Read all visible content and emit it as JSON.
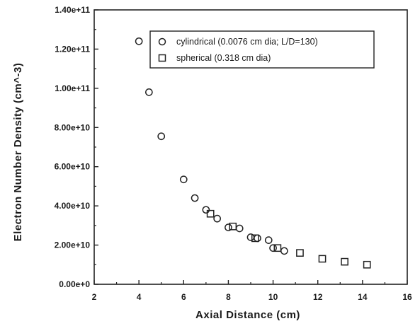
{
  "chart_data": {
    "type": "scatter",
    "xlabel": "Axial Distance (cm)",
    "ylabel": "Electron Number Density (cm^-3)",
    "xlim": [
      2,
      16
    ],
    "ylim": [
      0,
      140000000000
    ],
    "x_ticks": [
      2,
      4,
      6,
      8,
      10,
      12,
      14,
      16
    ],
    "x_tick_labels": [
      "2",
      "4",
      "6",
      "8",
      "10",
      "12",
      "14",
      "16"
    ],
    "y_ticks": [
      0,
      20000000000,
      40000000000,
      60000000000,
      80000000000,
      100000000000,
      120000000000,
      140000000000
    ],
    "y_tick_labels": [
      "0.00e+0",
      "2.00e+10",
      "4.00e+10",
      "6.00e+10",
      "8.00e+10",
      "1.00e+11",
      "1.20e+11",
      "1.40e+11"
    ],
    "grid": false,
    "legend_position": "top-right",
    "series": [
      {
        "name": "cylindrical (0.0076 cm dia; L/D=130)",
        "marker": "circle",
        "x": [
          4.0,
          4.45,
          5.0,
          6.0,
          6.5,
          7.0,
          7.5,
          8.0,
          8.5,
          9.0,
          9.3,
          9.8,
          10.0,
          10.5
        ],
        "y": [
          124000000000,
          98000000000,
          75500000000,
          53500000000,
          44000000000,
          38000000000,
          33500000000,
          29000000000,
          28500000000,
          24000000000,
          23500000000,
          22500000000,
          18500000000,
          17000000000
        ]
      },
      {
        "name": "spherical (0.318 cm dia)",
        "marker": "square",
        "x": [
          7.2,
          8.2,
          9.2,
          10.2,
          11.2,
          12.2,
          13.2,
          14.2
        ],
        "y": [
          36000000000,
          29500000000,
          23500000000,
          18500000000,
          16000000000,
          13000000000,
          11500000000,
          10000000000
        ]
      }
    ]
  }
}
